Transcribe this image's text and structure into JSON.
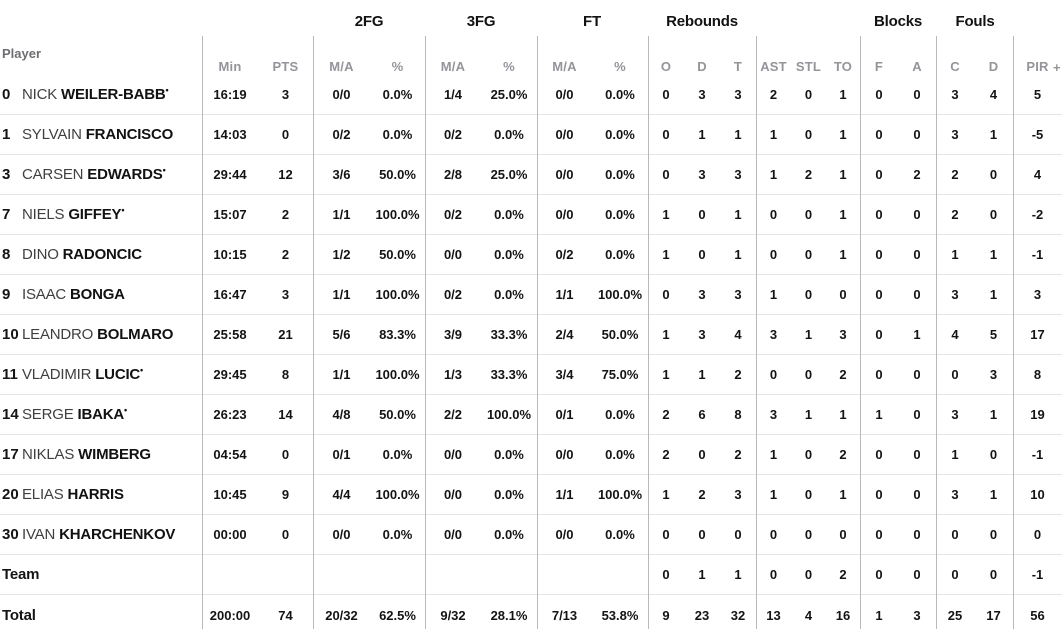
{
  "table": {
    "starter_marker": "•",
    "groups": [
      "2FG",
      "3FG",
      "FT",
      "Rebounds",
      "Blocks",
      "Fouls"
    ],
    "headers": {
      "player": "Player",
      "min": "Min",
      "pts": "PTS",
      "ma": "M/A",
      "pct": "%",
      "o": "O",
      "d": "D",
      "t": "T",
      "ast": "AST",
      "stl": "STL",
      "to": "TO",
      "f": "F",
      "a": "A",
      "c": "C",
      "d2": "D",
      "pir": "PIR",
      "pir_plus": "+"
    },
    "rows": [
      {
        "num": "0",
        "first": "NICK",
        "last": "WEILER-BABB",
        "starter": true,
        "min": "16:19",
        "pts": "3",
        "fg2_ma": "0/0",
        "fg2_pct": "0.0%",
        "fg3_ma": "1/4",
        "fg3_pct": "25.0%",
        "ft_ma": "0/0",
        "ft_pct": "0.0%",
        "ro": "0",
        "rd": "3",
        "rt": "3",
        "ast": "2",
        "stl": "0",
        "to": "1",
        "bf": "0",
        "ba": "0",
        "fc": "3",
        "fd": "4",
        "pir": "5"
      },
      {
        "num": "1",
        "first": "SYLVAIN",
        "last": "FRANCISCO",
        "starter": false,
        "min": "14:03",
        "pts": "0",
        "fg2_ma": "0/2",
        "fg2_pct": "0.0%",
        "fg3_ma": "0/2",
        "fg3_pct": "0.0%",
        "ft_ma": "0/0",
        "ft_pct": "0.0%",
        "ro": "0",
        "rd": "1",
        "rt": "1",
        "ast": "1",
        "stl": "0",
        "to": "1",
        "bf": "0",
        "ba": "0",
        "fc": "3",
        "fd": "1",
        "pir": "-5"
      },
      {
        "num": "3",
        "first": "CARSEN",
        "last": "EDWARDS",
        "starter": true,
        "min": "29:44",
        "pts": "12",
        "fg2_ma": "3/6",
        "fg2_pct": "50.0%",
        "fg3_ma": "2/8",
        "fg3_pct": "25.0%",
        "ft_ma": "0/0",
        "ft_pct": "0.0%",
        "ro": "0",
        "rd": "3",
        "rt": "3",
        "ast": "1",
        "stl": "2",
        "to": "1",
        "bf": "0",
        "ba": "2",
        "fc": "2",
        "fd": "0",
        "pir": "4"
      },
      {
        "num": "7",
        "first": "NIELS",
        "last": "GIFFEY",
        "starter": true,
        "min": "15:07",
        "pts": "2",
        "fg2_ma": "1/1",
        "fg2_pct": "100.0%",
        "fg3_ma": "0/2",
        "fg3_pct": "0.0%",
        "ft_ma": "0/0",
        "ft_pct": "0.0%",
        "ro": "1",
        "rd": "0",
        "rt": "1",
        "ast": "0",
        "stl": "0",
        "to": "1",
        "bf": "0",
        "ba": "0",
        "fc": "2",
        "fd": "0",
        "pir": "-2"
      },
      {
        "num": "8",
        "first": "DINO",
        "last": "RADONCIC",
        "starter": false,
        "min": "10:15",
        "pts": "2",
        "fg2_ma": "1/2",
        "fg2_pct": "50.0%",
        "fg3_ma": "0/0",
        "fg3_pct": "0.0%",
        "ft_ma": "0/2",
        "ft_pct": "0.0%",
        "ro": "1",
        "rd": "0",
        "rt": "1",
        "ast": "0",
        "stl": "0",
        "to": "1",
        "bf": "0",
        "ba": "0",
        "fc": "1",
        "fd": "1",
        "pir": "-1"
      },
      {
        "num": "9",
        "first": "ISAAC",
        "last": "BONGA",
        "starter": false,
        "min": "16:47",
        "pts": "3",
        "fg2_ma": "1/1",
        "fg2_pct": "100.0%",
        "fg3_ma": "0/2",
        "fg3_pct": "0.0%",
        "ft_ma": "1/1",
        "ft_pct": "100.0%",
        "ro": "0",
        "rd": "3",
        "rt": "3",
        "ast": "1",
        "stl": "0",
        "to": "0",
        "bf": "0",
        "ba": "0",
        "fc": "3",
        "fd": "1",
        "pir": "3"
      },
      {
        "num": "10",
        "first": "LEANDRO",
        "last": "BOLMARO",
        "starter": false,
        "min": "25:58",
        "pts": "21",
        "fg2_ma": "5/6",
        "fg2_pct": "83.3%",
        "fg3_ma": "3/9",
        "fg3_pct": "33.3%",
        "ft_ma": "2/4",
        "ft_pct": "50.0%",
        "ro": "1",
        "rd": "3",
        "rt": "4",
        "ast": "3",
        "stl": "1",
        "to": "3",
        "bf": "0",
        "ba": "1",
        "fc": "4",
        "fd": "5",
        "pir": "17"
      },
      {
        "num": "11",
        "first": "VLADIMIR",
        "last": "LUCIC",
        "starter": true,
        "min": "29:45",
        "pts": "8",
        "fg2_ma": "1/1",
        "fg2_pct": "100.0%",
        "fg3_ma": "1/3",
        "fg3_pct": "33.3%",
        "ft_ma": "3/4",
        "ft_pct": "75.0%",
        "ro": "1",
        "rd": "1",
        "rt": "2",
        "ast": "0",
        "stl": "0",
        "to": "2",
        "bf": "0",
        "ba": "0",
        "fc": "0",
        "fd": "3",
        "pir": "8"
      },
      {
        "num": "14",
        "first": "SERGE",
        "last": "IBAKA",
        "starter": true,
        "min": "26:23",
        "pts": "14",
        "fg2_ma": "4/8",
        "fg2_pct": "50.0%",
        "fg3_ma": "2/2",
        "fg3_pct": "100.0%",
        "ft_ma": "0/1",
        "ft_pct": "0.0%",
        "ro": "2",
        "rd": "6",
        "rt": "8",
        "ast": "3",
        "stl": "1",
        "to": "1",
        "bf": "1",
        "ba": "0",
        "fc": "3",
        "fd": "1",
        "pir": "19"
      },
      {
        "num": "17",
        "first": "NIKLAS",
        "last": "WIMBERG",
        "starter": false,
        "min": "04:54",
        "pts": "0",
        "fg2_ma": "0/1",
        "fg2_pct": "0.0%",
        "fg3_ma": "0/0",
        "fg3_pct": "0.0%",
        "ft_ma": "0/0",
        "ft_pct": "0.0%",
        "ro": "2",
        "rd": "0",
        "rt": "2",
        "ast": "1",
        "stl": "0",
        "to": "2",
        "bf": "0",
        "ba": "0",
        "fc": "1",
        "fd": "0",
        "pir": "-1"
      },
      {
        "num": "20",
        "first": "ELIAS",
        "last": "HARRIS",
        "starter": false,
        "min": "10:45",
        "pts": "9",
        "fg2_ma": "4/4",
        "fg2_pct": "100.0%",
        "fg3_ma": "0/0",
        "fg3_pct": "0.0%",
        "ft_ma": "1/1",
        "ft_pct": "100.0%",
        "ro": "1",
        "rd": "2",
        "rt": "3",
        "ast": "1",
        "stl": "0",
        "to": "1",
        "bf": "0",
        "ba": "0",
        "fc": "3",
        "fd": "1",
        "pir": "10"
      },
      {
        "num": "30",
        "first": "IVAN",
        "last": "KHARCHENKOV",
        "starter": false,
        "min": "00:00",
        "pts": "0",
        "fg2_ma": "0/0",
        "fg2_pct": "0.0%",
        "fg3_ma": "0/0",
        "fg3_pct": "0.0%",
        "ft_ma": "0/0",
        "ft_pct": "0.0%",
        "ro": "0",
        "rd": "0",
        "rt": "0",
        "ast": "0",
        "stl": "0",
        "to": "0",
        "bf": "0",
        "ba": "0",
        "fc": "0",
        "fd": "0",
        "pir": "0"
      },
      {
        "label": "Team",
        "first": "",
        "last": "",
        "starter": false,
        "min": "",
        "pts": "",
        "fg2_ma": "",
        "fg2_pct": "",
        "fg3_ma": "",
        "fg3_pct": "",
        "ft_ma": "",
        "ft_pct": "",
        "ro": "0",
        "rd": "1",
        "rt": "1",
        "ast": "0",
        "stl": "0",
        "to": "2",
        "bf": "0",
        "ba": "0",
        "fc": "0",
        "fd": "0",
        "pir": "-1"
      },
      {
        "label": "Total",
        "first": "",
        "last": "",
        "starter": false,
        "min": "200:00",
        "pts": "74",
        "fg2_ma": "20/32",
        "fg2_pct": "62.5%",
        "fg3_ma": "9/32",
        "fg3_pct": "28.1%",
        "ft_ma": "7/13",
        "ft_pct": "53.8%",
        "ro": "9",
        "rd": "23",
        "rt": "32",
        "ast": "13",
        "stl": "4",
        "to": "16",
        "bf": "1",
        "ba": "3",
        "fc": "25",
        "fd": "17",
        "pir": "56"
      }
    ]
  }
}
